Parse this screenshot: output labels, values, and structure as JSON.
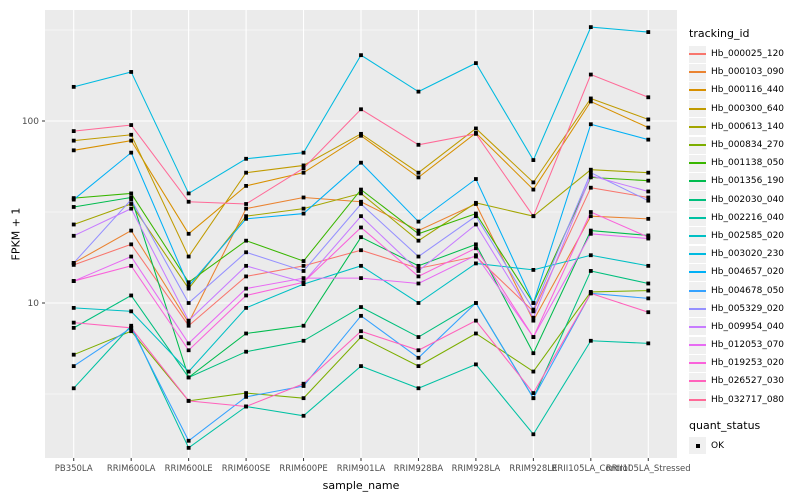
{
  "colors": {
    "panel_bg": "#EBEBEB",
    "gridline": "#FFFFFF",
    "axis_text": "#4D4D4D",
    "tick_mark": "#333333",
    "point": "#000000",
    "legend_key_bg": "#F0F0F0"
  },
  "chart_data": {
    "type": "line",
    "title": "",
    "xlabel": "sample_name",
    "ylabel": "FPKM + 1",
    "y_scale": "log10",
    "ylim": [
      1.4,
      420
    ],
    "grid": true,
    "legend_position": "right",
    "legend_title": "tracking_id",
    "yticks": [
      {
        "value": 10,
        "label": "10"
      },
      {
        "value": 100,
        "label": "100"
      }
    ],
    "categories": [
      "PB350LA",
      "RRIM600LA",
      "RRIM600LE",
      "RRIM600SE",
      "RRIM600PE",
      "RRIM901LA",
      "RRIM928BA",
      "RRIM928LA",
      "RRIM928LE",
      "RRII105LA_Control",
      "RRII105LA_Stressed"
    ],
    "series": [
      {
        "tracking_id": "Hb_000025_120",
        "color": "#F8766D",
        "values": [
          16.2,
          21,
          7.5,
          14,
          16,
          19.5,
          15.5,
          18,
          9,
          43,
          38
        ]
      },
      {
        "tracking_id": "Hb_000103_090",
        "color": "#EA8331",
        "values": [
          16.6,
          25,
          7.8,
          33,
          38,
          36,
          25,
          35,
          8,
          30,
          29
        ]
      },
      {
        "tracking_id": "Hb_000116_440",
        "color": "#D89000",
        "values": [
          69,
          78,
          24,
          44,
          52,
          83,
          49,
          86,
          42,
          128,
          92
        ]
      },
      {
        "tracking_id": "Hb_000300_640",
        "color": "#C09B00",
        "values": [
          78,
          84,
          18,
          52,
          57,
          85,
          52,
          91,
          46,
          133,
          102
        ]
      },
      {
        "tracking_id": "Hb_000613_140",
        "color": "#A3A500",
        "values": [
          27,
          35,
          12,
          30,
          33,
          40,
          22,
          35.5,
          30,
          54,
          52
        ]
      },
      {
        "tracking_id": "Hb_000834_270",
        "color": "#7CAE00",
        "values": [
          5.2,
          7,
          2.9,
          3.2,
          3,
          6.5,
          4.5,
          6.8,
          4.2,
          11.5,
          11.7
        ]
      },
      {
        "tracking_id": "Hb_001138_050",
        "color": "#39B600",
        "values": [
          37.7,
          40,
          13,
          22,
          17,
          42,
          24,
          31,
          10,
          49,
          47
        ]
      },
      {
        "tracking_id": "Hb_001356_190",
        "color": "#00BB4E",
        "values": [
          33.7,
          38,
          3.9,
          6.8,
          7.5,
          23,
          16,
          21,
          5.3,
          25,
          23.5
        ]
      },
      {
        "tracking_id": "Hb_002030_040",
        "color": "#00BF7D",
        "values": [
          7.3,
          11,
          3.9,
          5.4,
          6.2,
          9.5,
          6.5,
          10,
          3,
          15,
          12.8
        ]
      },
      {
        "tracking_id": "Hb_002216_040",
        "color": "#00C1A3",
        "values": [
          3.4,
          7.5,
          1.6,
          2.7,
          2.4,
          4.5,
          3.4,
          4.6,
          1.9,
          6.2,
          6
        ]
      },
      {
        "tracking_id": "Hb_002585_020",
        "color": "#00BFC4",
        "values": [
          9.4,
          9,
          4.2,
          9.4,
          12.7,
          16,
          10,
          16.5,
          15.2,
          18.3,
          16
        ]
      },
      {
        "tracking_id": "Hb_003020_230",
        "color": "#00BAE0",
        "values": [
          154,
          186,
          40,
          62,
          67,
          230,
          145,
          208,
          61,
          328,
          308
        ]
      },
      {
        "tracking_id": "Hb_004657_020",
        "color": "#00B0F6",
        "values": [
          37,
          67,
          12.4,
          29,
          31,
          59,
          28,
          48,
          10,
          96,
          79
        ]
      },
      {
        "tracking_id": "Hb_004678_050",
        "color": "#35A2FF",
        "values": [
          4.5,
          7.3,
          1.75,
          3.05,
          3.5,
          8.5,
          5,
          10,
          3,
          11.3,
          10.6
        ]
      },
      {
        "tracking_id": "Hb_005329_020",
        "color": "#9590FF",
        "values": [
          16.6,
          37,
          10,
          19,
          15,
          35,
          18,
          30,
          9.2,
          52,
          36.5
        ]
      },
      {
        "tracking_id": "Hb_009954_040",
        "color": "#C77CFF",
        "values": [
          23.4,
          33,
          8,
          16,
          13,
          30,
          15,
          27,
          8.3,
          50,
          41
        ]
      },
      {
        "tracking_id": "Hb_012053_070",
        "color": "#E76BF3",
        "values": [
          13.2,
          18,
          6,
          12,
          13.7,
          13.7,
          12.8,
          18.3,
          6.5,
          24,
          22.6
        ]
      },
      {
        "tracking_id": "Hb_019253_020",
        "color": "#FA62DB",
        "values": [
          13.2,
          16,
          5.5,
          11,
          13,
          26,
          14,
          20,
          6.5,
          31.6,
          23
        ]
      },
      {
        "tracking_id": "Hb_026527_030",
        "color": "#FF62BC",
        "values": [
          7.8,
          7.3,
          2.9,
          2.7,
          3.6,
          7,
          5.5,
          8,
          3.2,
          11.3,
          8.9
        ]
      },
      {
        "tracking_id": "Hb_032717_080",
        "color": "#FF6A98",
        "values": [
          88,
          95,
          36,
          35,
          55,
          116,
          74,
          85,
          30,
          180,
          135
        ]
      }
    ],
    "quant_status": {
      "title": "quant_status",
      "items": [
        {
          "label": "OK",
          "shape": "square",
          "color": "#000000"
        }
      ]
    }
  }
}
